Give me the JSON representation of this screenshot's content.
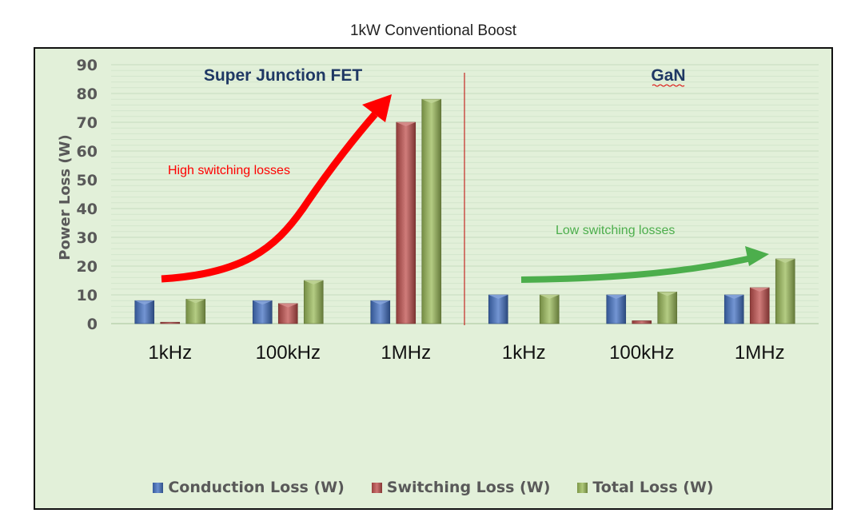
{
  "chart_data": {
    "type": "bar",
    "title": "1kW Conventional Boost",
    "ylabel": "Power Loss (W)",
    "xlabel": "",
    "ylim": [
      0,
      90
    ],
    "yticks": [
      0,
      10,
      20,
      30,
      40,
      50,
      60,
      70,
      80,
      90
    ],
    "grid": true,
    "legend_position": "bottom",
    "groups": [
      {
        "label": "Super Junction FET",
        "categories": [
          "1kHz",
          "100kHz",
          "1MHz"
        ]
      },
      {
        "label": "GaN",
        "categories": [
          "1kHz",
          "100kHz",
          "1MHz"
        ]
      }
    ],
    "categories": [
      "1kHz",
      "100kHz",
      "1MHz",
      "1kHz",
      "100kHz",
      "1MHz"
    ],
    "series": [
      {
        "name": "Conduction Loss (W)",
        "color": "#4472c4",
        "values": [
          8,
          8,
          8,
          10,
          10,
          10
        ]
      },
      {
        "name": "Switching Loss (W)",
        "color": "#c0504d",
        "values": [
          0.5,
          7,
          70,
          0,
          1,
          12.5
        ]
      },
      {
        "name": "Total Loss (W)",
        "color": "#9bbb59",
        "values": [
          8.5,
          15,
          78,
          10,
          11,
          22.5
        ]
      }
    ],
    "annotations": [
      {
        "text": "High switching losses",
        "color": "#ff0000"
      },
      {
        "text": "Low switching losses",
        "color": "#4cae4c"
      }
    ]
  }
}
